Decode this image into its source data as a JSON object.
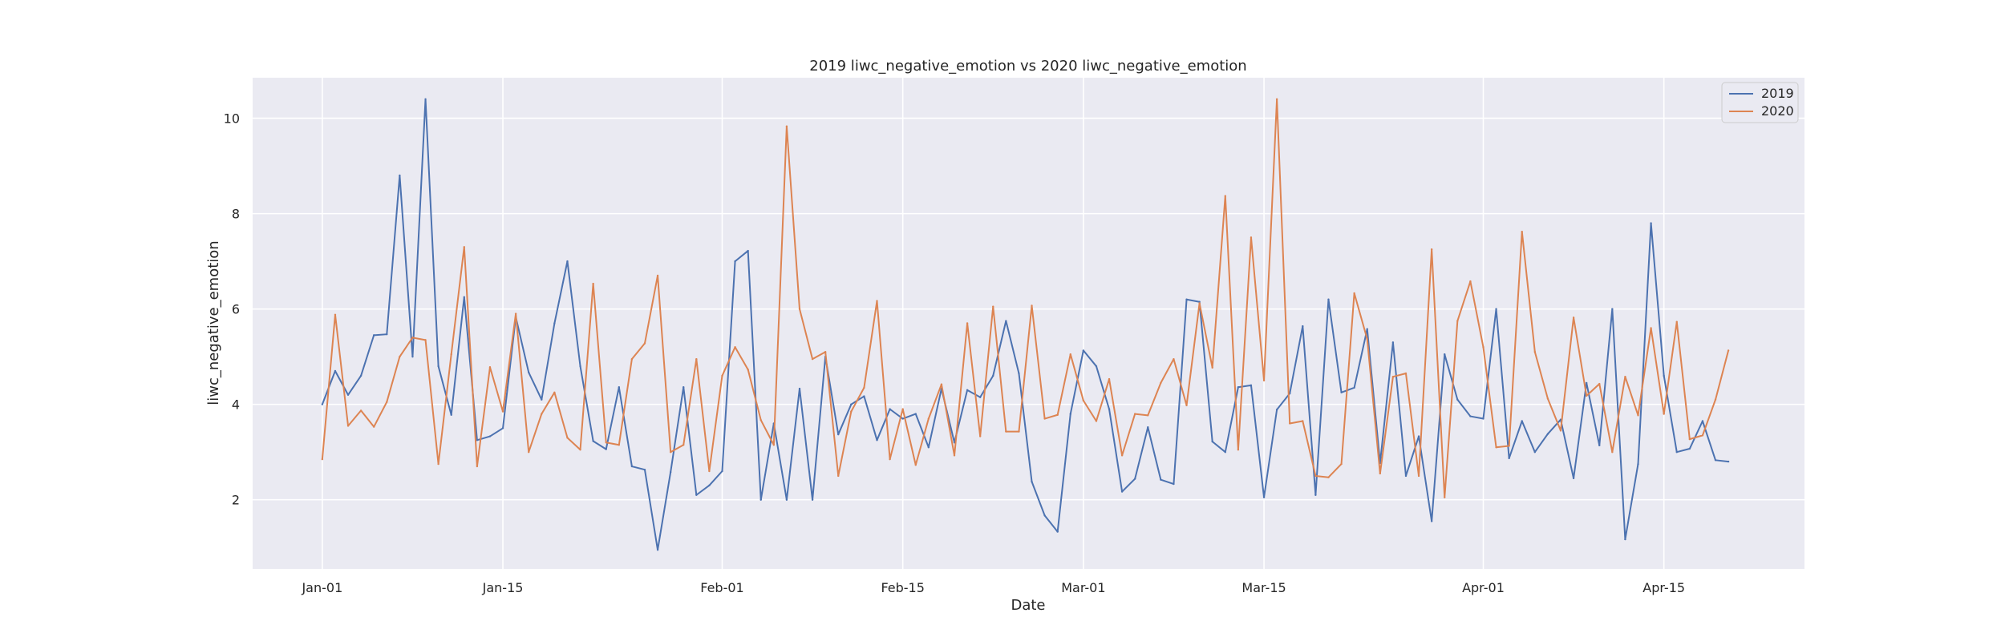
{
  "chart_data": {
    "type": "line",
    "title": "2019 liwc_negative_emotion vs 2020 liwc_negative_emotion",
    "xlabel": "Date",
    "ylabel": "liwc_negative_emotion",
    "x_start": "Jan-01",
    "x_ticks": [
      "Jan-01",
      "Jan-15",
      "Feb-01",
      "Feb-15",
      "Mar-01",
      "Mar-15",
      "Apr-01",
      "Apr-15"
    ],
    "x_tick_days": [
      0,
      14,
      31,
      45,
      59,
      73,
      90,
      104
    ],
    "xlim_days": [
      -5.4,
      114.9
    ],
    "y_ticks": [
      2,
      4,
      6,
      8,
      10
    ],
    "ylim": [
      0.55,
      10.85
    ],
    "grid": true,
    "legend_position": "top-right",
    "background": "#eaeaf2",
    "series": [
      {
        "name": "2019",
        "color": "#4c72b0",
        "values": [
          4.0,
          4.7,
          4.2,
          4.6,
          5.45,
          5.47,
          8.8,
          5.0,
          10.4,
          4.8,
          3.78,
          6.25,
          3.25,
          3.33,
          3.5,
          5.83,
          4.67,
          4.1,
          5.7,
          7.0,
          4.8,
          3.23,
          3.06,
          4.36,
          2.7,
          2.63,
          0.95,
          2.58,
          4.36,
          2.1,
          2.3,
          2.6,
          7.0,
          7.22,
          2.0,
          3.6,
          2.0,
          4.33,
          2.0,
          5.0,
          3.37,
          4.0,
          4.17,
          3.25,
          3.9,
          3.7,
          3.8,
          3.1,
          4.33,
          3.2,
          4.3,
          4.15,
          4.6,
          5.75,
          4.65,
          2.38,
          1.67,
          1.33,
          3.8,
          5.13,
          4.8,
          3.9,
          2.17,
          2.44,
          3.52,
          2.42,
          2.33,
          6.2,
          6.15,
          3.22,
          3.0,
          4.36,
          4.4,
          2.05,
          3.89,
          4.23,
          5.64,
          2.1,
          6.2,
          4.25,
          4.35,
          5.58,
          2.77,
          5.3,
          2.5,
          3.33,
          1.55,
          5.05,
          4.1,
          3.75,
          3.7,
          6.0,
          2.87,
          3.65,
          3.0,
          3.38,
          3.68,
          2.45,
          4.45,
          3.14,
          6.0,
          1.17,
          2.75,
          7.8,
          4.6,
          3.0,
          3.07,
          3.65,
          2.83,
          2.8
        ]
      },
      {
        "name": "2020",
        "color": "#dd8452",
        "values": [
          2.85,
          5.88,
          3.55,
          3.87,
          3.53,
          4.05,
          5.0,
          5.4,
          5.35,
          2.75,
          5.05,
          7.3,
          2.7,
          4.78,
          3.85,
          5.9,
          3.0,
          3.8,
          4.25,
          3.3,
          3.05,
          6.53,
          3.2,
          3.15,
          4.95,
          5.28,
          6.7,
          3.0,
          3.15,
          4.95,
          2.6,
          4.6,
          5.2,
          4.73,
          3.67,
          3.15,
          9.83,
          6.0,
          4.95,
          5.1,
          2.5,
          3.85,
          4.35,
          6.17,
          2.85,
          3.9,
          2.73,
          3.7,
          4.42,
          2.93,
          5.7,
          3.33,
          6.05,
          3.43,
          3.43,
          6.07,
          3.7,
          3.78,
          5.05,
          4.08,
          3.65,
          4.53,
          2.93,
          3.8,
          3.77,
          4.45,
          4.95,
          3.98,
          6.12,
          4.77,
          8.37,
          3.05,
          7.5,
          4.5,
          10.4,
          3.6,
          3.65,
          2.5,
          2.47,
          2.75,
          6.33,
          5.37,
          2.55,
          4.58,
          4.65,
          2.5,
          7.25,
          2.05,
          5.75,
          6.58,
          5.2,
          3.1,
          3.13,
          7.62,
          5.1,
          4.12,
          3.45,
          5.82,
          4.18,
          4.43,
          3.0,
          4.58,
          3.77,
          5.6,
          3.8,
          5.73,
          3.27,
          3.35,
          4.1,
          5.13
        ]
      }
    ]
  }
}
